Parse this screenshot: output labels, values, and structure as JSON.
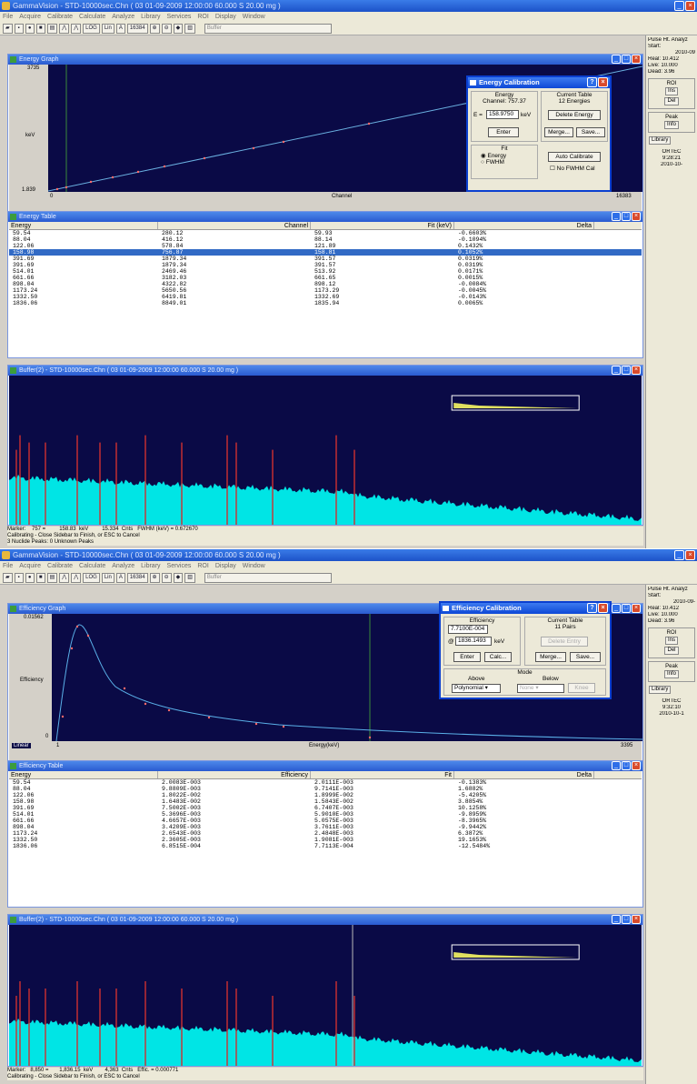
{
  "top": {
    "title": "GammaVision - STD-10000sec.Chn ( 03 01-09-2009 12:00:00 60.000 S 20.00 mg )",
    "menu": [
      "File",
      "Acquire",
      "Calibrate",
      "Calculate",
      "Analyze",
      "Library",
      "Services",
      "ROI",
      "Display",
      "Window"
    ],
    "toolbar": {
      "log": "LOG",
      "lin": "Lin",
      "auto": "A",
      "channels": "16384",
      "buffer": "Buffer"
    },
    "graph": {
      "title": "Energy Graph",
      "ymax": "3735",
      "ylabel": "keV",
      "ymin": "1.839",
      "xmin": "0",
      "xlabel": "Channel",
      "xmax": "16383"
    },
    "dialog": {
      "title": "Energy Calibration",
      "energy_label": "Energy",
      "channel_text": "Channel: 757.37",
      "e_label": "E =",
      "e_value": "158.9750",
      "e_unit": "keV",
      "enter": "Enter",
      "table_label": "Current Table",
      "table_count": "12 Energies",
      "delete": "Delete Energy",
      "merge": "Merge...",
      "save": "Save...",
      "fit_label": "Fit",
      "opt_energy": "Energy",
      "opt_fwhm": "FWHM",
      "auto": "Auto Calibrate",
      "nofwhm": "No FWHM Cal"
    },
    "table": {
      "title": "Energy Table",
      "headers": [
        "Energy",
        "Channel",
        "Fit (keV)",
        "Delta"
      ],
      "rows": [
        [
          "59.54",
          "280.12",
          "59.93",
          "-0.6603%"
        ],
        [
          "88.04",
          "416.12",
          "88.14",
          "-0.1094%"
        ],
        [
          "122.06",
          "578.84",
          "121.89",
          "0.1432%"
        ],
        [
          "158.98",
          "756.87",
          "158.81",
          "0.1052%"
        ],
        [
          "391.69",
          "1879.34",
          "391.57",
          "0.0319%"
        ],
        [
          "391.69",
          "1879.34",
          "391.57",
          "0.0319%"
        ],
        [
          "514.01",
          "2469.46",
          "513.92",
          "0.0171%"
        ],
        [
          "661.66",
          "3182.03",
          "661.65",
          "0.0015%"
        ],
        [
          "898.04",
          "4322.82",
          "898.12",
          "-0.0084%"
        ],
        [
          "1173.24",
          "5650.56",
          "1173.29",
          "-0.0045%"
        ],
        [
          "1332.50",
          "6419.81",
          "1332.69",
          "-0.0143%"
        ],
        [
          "1836.06",
          "8849.01",
          "1835.94",
          "0.0065%"
        ]
      ]
    },
    "buffer": {
      "title": "Buffer(2) - STD-10000sec.Chn ( 03 01-09-2009 12:00:00 60.000 S 20.00 mg )"
    },
    "status": [
      "Marker:    757 =         158.83  keV         15.334  Cnts   FWHM (keV) = 0.672670",
      "Calibrating - Close Sidebar to Finish, or ESC to Cancel",
      "3 Nuclide Peaks: 0 Unknown Peaks"
    ],
    "side": {
      "head": "Pulse Ht. Analyz",
      "start": "Start:",
      "date": "2010-09",
      "real": "Real:",
      "real_v": "10.412",
      "live": "Live:",
      "live_v": "10.000",
      "dead": "Dead:",
      "dead_v": "3.96",
      "roi": "ROI",
      "ins": "Ins",
      "del": "Del",
      "peak": "Peak",
      "info": "Info",
      "library": "Library",
      "ortec": "ORTEC",
      "t1": "9:28:21",
      "t2": "2010-10-"
    }
  },
  "bottom": {
    "title": "GammaVision - STD-10000sec.Chn ( 03 01-09-2009 12:00:00 60.000 S 20.00 mg )",
    "graph": {
      "title": "Efficiency Graph",
      "ymax": "0.01562",
      "ylabel": "Efficiency",
      "ymin": "0",
      "xmin": "1",
      "xlabel": "Energy(keV)",
      "xmax": "3395",
      "linear": "Linear"
    },
    "dialog": {
      "title": "Efficiency Calibration",
      "eff_label": "Efficiency",
      "eff_value": "7.7100E-004",
      "at": "@",
      "kev_value": "1836.1493",
      "kev": "keV",
      "enter": "Enter",
      "calc": "Calc...",
      "table_label": "Current Table",
      "table_count": "11 Pairs",
      "delete": "Delete Entry",
      "merge": "Merge...",
      "save": "Save...",
      "mode": "Mode",
      "above": "Above",
      "below": "Below",
      "poly": "Polynomial",
      "none": "None",
      "knee": "Knee"
    },
    "table": {
      "title": "Efficiency Table",
      "headers": [
        "Energy",
        "Efficiency",
        "Fit",
        "Delta"
      ],
      "rows": [
        [
          "59.54",
          "2.0083E-003",
          "2.0111E-003",
          "-0.1383%"
        ],
        [
          "88.04",
          "9.8809E-003",
          "9.7141E-003",
          "1.6882%"
        ],
        [
          "122.06",
          "1.8022E-002",
          "1.8999E-002",
          "-5.4205%"
        ],
        [
          "158.98",
          "1.6483E-002",
          "1.5843E-002",
          "3.8854%"
        ],
        [
          "391.69",
          "7.5002E-003",
          "6.7407E-003",
          "10.1258%"
        ],
        [
          "514.01",
          "5.3696E-003",
          "5.9010E-003",
          "-9.8959%"
        ],
        [
          "661.66",
          "4.6657E-003",
          "5.0575E-003",
          "-8.3965%"
        ],
        [
          "898.04",
          "3.4209E-003",
          "3.7611E-003",
          "-9.9442%"
        ],
        [
          "1173.24",
          "2.6543E-003",
          "2.4848E-003",
          "6.3872%"
        ],
        [
          "1332.50",
          "2.3605E-003",
          "1.9081E-003",
          "19.1653%"
        ],
        [
          "1836.06",
          "6.8515E-004",
          "7.7113E-004",
          "-12.5484%"
        ]
      ]
    },
    "buffer": {
      "title": "Buffer(2) - STD-10000sec.Chn ( 03 01-09-2009 12:00:00 60.000 S 20.00 mg )"
    },
    "status": [
      "Marker:   8,850 =       1,836.15  keV        4,363  Cnts   Effic. = 0.000771",
      "Calibrating - Close Sidebar to Finish, or ESC to Cancel"
    ],
    "side": {
      "head": "Pulse Ht. Analyz",
      "start": "Start:",
      "date": "2010-09-",
      "real": "Real:",
      "real_v": "10.412",
      "live": "Live:",
      "live_v": "10.000",
      "dead": "Dead:",
      "dead_v": "3.96",
      "roi": "ROI",
      "ins": "Ins",
      "del": "Del",
      "peak": "Peak",
      "info": "Info",
      "library": "Library",
      "ortec": "ORTEC",
      "t1": "9:32:10",
      "t2": "2010-10-1"
    }
  },
  "colors": {
    "title_blue": "#1c52c8",
    "plot_bg": "#0a0a46",
    "spectrum": "#00e5e5",
    "peak_marker": "#d03030",
    "selection": "#316ac5"
  }
}
